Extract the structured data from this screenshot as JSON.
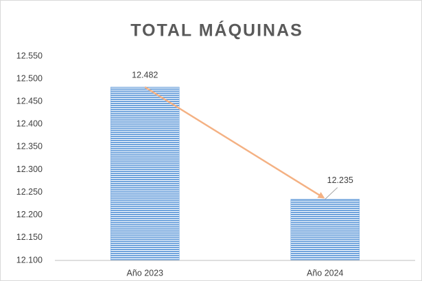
{
  "chart_data": {
    "type": "bar",
    "title": "TOTAL MÁQUINAS",
    "categories": [
      "Año 2023",
      "Año 2024"
    ],
    "values": [
      12482,
      12235
    ],
    "value_labels": [
      "12.482",
      "12.235"
    ],
    "color": "#6fa3dc",
    "ylim": [
      12100,
      12550
    ],
    "yticks": [
      {
        "value": 12100,
        "label": "12.100"
      },
      {
        "value": 12150,
        "label": "12.150"
      },
      {
        "value": 12200,
        "label": "12.200"
      },
      {
        "value": 12250,
        "label": "12.250"
      },
      {
        "value": 12300,
        "label": "12.300"
      },
      {
        "value": 12350,
        "label": "12.350"
      },
      {
        "value": 12400,
        "label": "12.400"
      },
      {
        "value": 12450,
        "label": "12.450"
      },
      {
        "value": 12500,
        "label": "12.500"
      },
      {
        "value": 12550,
        "label": "12.550"
      }
    ],
    "grid": false
  }
}
